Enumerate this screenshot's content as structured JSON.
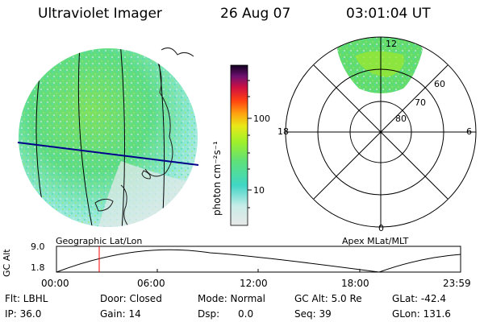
{
  "header": {
    "instrument": "Ultraviolet Imager",
    "date": "26 Aug 07",
    "time": "03:01:04 UT"
  },
  "colorbar": {
    "unit_label": "photon cm⁻²s⁻¹",
    "ticks": [
      "100",
      "10"
    ]
  },
  "polar": {
    "mlt_labels": {
      "top": "12",
      "left": "18",
      "right": "6",
      "bottom": "0"
    },
    "lat_labels": [
      "60",
      "70",
      "80"
    ]
  },
  "panels": {
    "left_label": "Geographic Lat/Lon",
    "right_label": "Apex  MLat/MLT"
  },
  "altitude_plot": {
    "axis_title": "GC Alt",
    "y_ticks": [
      "9.0",
      "1.8"
    ],
    "x_ticks": [
      "00:00",
      "06:00",
      "12:00",
      "18:00",
      "23:59"
    ]
  },
  "info": {
    "row1": [
      "Flt: LBHL",
      "Door: Closed",
      "Mode: Normal",
      "GC Alt: 5.0 Re",
      "GLat: -42.4"
    ],
    "row2": [
      "IP: 36.0",
      "Gain: 14",
      "Dsp:      0.0",
      "Seq: 39",
      "GLon: 131.6"
    ]
  }
}
